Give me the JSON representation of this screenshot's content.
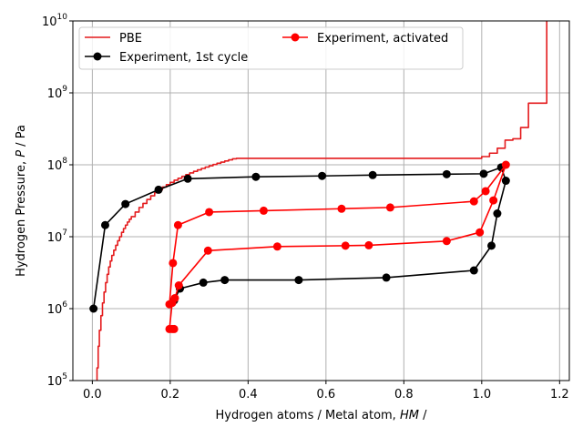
{
  "chart_data": {
    "type": "line",
    "title": "",
    "xlabel_main": "Hydrogen atoms / Metal atom, ",
    "xlabel_var": "HM",
    "xlabel_tail": " /",
    "ylabel_main": "Hydrogen Pressure, ",
    "ylabel_var": "P",
    "ylabel_tail": " / Pa",
    "xlim": [
      -0.05,
      1.225
    ],
    "ylim": [
      100000,
      10000000000
    ],
    "yscale": "log",
    "grid": true,
    "legend_position": "top",
    "x_ticks": [
      {
        "value": 0.0,
        "label": "0.0"
      },
      {
        "value": 0.2,
        "label": "0.2"
      },
      {
        "value": 0.4,
        "label": "0.4"
      },
      {
        "value": 0.6,
        "label": "0.6"
      },
      {
        "value": 0.8,
        "label": "0.8"
      },
      {
        "value": 1.0,
        "label": "1.0"
      },
      {
        "value": 1.2,
        "label": "1.2"
      }
    ],
    "y_ticks": [
      {
        "value": 100000,
        "base": "10",
        "exp": "5"
      },
      {
        "value": 1000000,
        "base": "10",
        "exp": "6"
      },
      {
        "value": 10000000,
        "base": "10",
        "exp": "7"
      },
      {
        "value": 100000000,
        "base": "10",
        "exp": "8"
      },
      {
        "value": 1000000000,
        "base": "10",
        "exp": "9"
      },
      {
        "value": 10000000000,
        "base": "10",
        "exp": "10"
      }
    ],
    "series": [
      {
        "name": "PBE",
        "color": "#e41a1c",
        "marker": false,
        "step": true,
        "x": [
          0.012,
          0.012,
          0.015,
          0.018,
          0.022,
          0.026,
          0.03,
          0.034,
          0.038,
          0.042,
          0.046,
          0.05,
          0.055,
          0.06,
          0.065,
          0.07,
          0.075,
          0.08,
          0.085,
          0.09,
          0.095,
          0.1,
          0.11,
          0.12,
          0.13,
          0.14,
          0.15,
          0.16,
          0.17,
          0.18,
          0.19,
          0.2,
          0.21,
          0.22,
          0.23,
          0.24,
          0.25,
          0.26,
          0.27,
          0.28,
          0.29,
          0.3,
          0.31,
          0.32,
          0.33,
          0.34,
          0.35,
          0.36,
          0.37,
          0.98,
          1.0,
          1.02,
          1.04,
          1.06,
          1.08,
          1.1,
          1.12,
          1.14,
          1.16,
          1.167,
          1.167
        ],
        "y": [
          100000,
          150000,
          300000,
          500000,
          800000,
          1200000,
          1700000,
          2300000,
          3000000,
          3800000,
          4600000,
          5500000,
          6500000,
          7600000,
          8800000,
          10000000,
          11500000,
          13000000,
          14500000,
          16000000,
          17500000,
          19000000,
          22000000,
          25500000,
          29000000,
          33000000,
          37000000,
          41000000,
          45000000,
          49000000,
          53000000,
          57000000,
          61000000,
          65000000,
          69000000,
          73000000,
          77000000,
          81000000,
          85000000,
          89000000,
          93000000,
          97000000,
          101000000,
          105000000,
          109000000,
          113000000,
          117000000,
          121000000,
          123000000,
          123000000,
          130000000,
          145000000,
          170000000,
          220000000,
          230000000,
          330000000,
          720000000,
          720000000,
          720000000,
          10000000000,
          10000000000
        ]
      },
      {
        "name": "Experiment, 1st cycle",
        "color": "#000000",
        "marker": true,
        "step": false,
        "x": [
          0.003,
          0.033,
          0.085,
          0.17,
          0.245,
          0.42,
          0.59,
          0.72,
          0.91,
          1.005,
          1.05,
          1.062,
          1.04,
          1.025,
          0.98,
          0.755,
          0.53,
          0.34,
          0.285,
          0.225,
          0.21
        ],
        "y": [
          1000000,
          14500000,
          28500000,
          45000000,
          64000000,
          68000000,
          70000000,
          72000000,
          74000000,
          75000000,
          92000000,
          60000000,
          21000000,
          7500000,
          3400000,
          2700000,
          2500000,
          2500000,
          2300000,
          1900000,
          1300000
        ]
      },
      {
        "name": "Experiment, activated",
        "color": "#ff0000",
        "marker": true,
        "step": false,
        "x": [
          0.198,
          0.207,
          0.22,
          0.3,
          0.44,
          0.64,
          0.765,
          0.98,
          1.01,
          1.062,
          1.03,
          0.995,
          0.91,
          0.71,
          0.65,
          0.475,
          0.297,
          0.222,
          0.212,
          0.205,
          0.198,
          0.205,
          0.21
        ],
        "y": [
          1150000,
          4300000,
          14500000,
          22000000,
          23000000,
          24500000,
          25500000,
          31000000,
          43000000,
          100000000,
          32000000,
          11500000,
          8700000,
          7600000,
          7500000,
          7300000,
          6400000,
          2100000,
          1400000,
          1200000,
          520000,
          520000,
          520000
        ]
      }
    ]
  }
}
